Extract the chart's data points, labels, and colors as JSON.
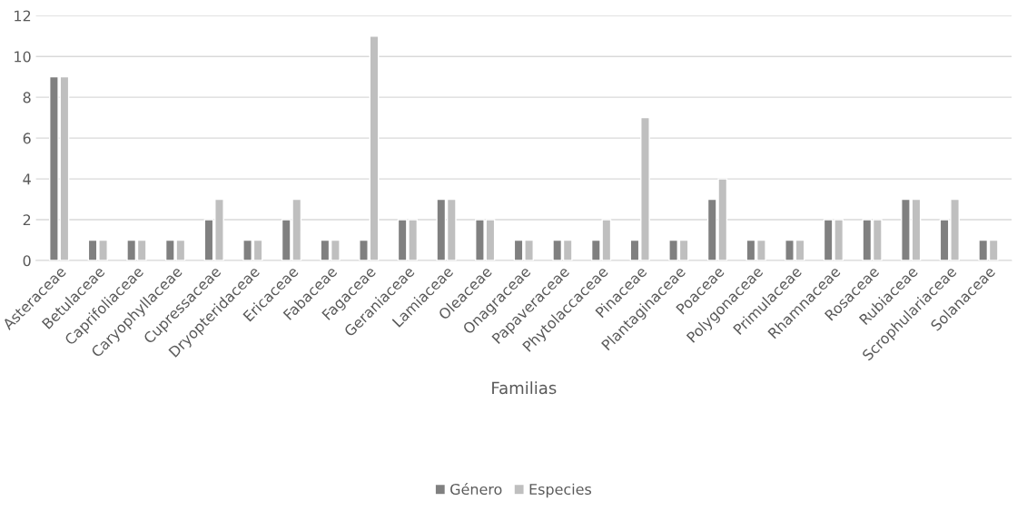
{
  "chart_data": {
    "type": "bar",
    "xlabel": "Familias",
    "categories": [
      "Asteraceae",
      "Betulaceae",
      "Caprifoliaceae",
      "Caryophyllaceae",
      "Cupressaceae",
      "Dryopteridaceae",
      "Ericaceae",
      "Fabaceae",
      "Fagaceae",
      "Geraniaceae",
      "Lamiaceae",
      "Oleaceae",
      "Onagraceae",
      "Papaveraceae",
      "Phytolaccaceae",
      "Pinaceae",
      "Plantaginaceae",
      "Poaceae",
      "Polygonaceae",
      "Primulaceae",
      "Rhamnaceae",
      "Rosaceae",
      "Rubiaceae",
      "Scrophulariaceae",
      "Solanaceae"
    ],
    "series": [
      {
        "name": "Género",
        "color": "#808080",
        "values": [
          9,
          1,
          1,
          1,
          2,
          1,
          2,
          1,
          1,
          2,
          3,
          2,
          1,
          1,
          1,
          1,
          1,
          3,
          1,
          1,
          2,
          2,
          3,
          2,
          1
        ]
      },
      {
        "name": "Especies",
        "color": "#bfbfbf",
        "values": [
          9,
          1,
          1,
          1,
          3,
          1,
          3,
          1,
          11,
          2,
          3,
          2,
          1,
          1,
          2,
          7,
          1,
          4,
          1,
          1,
          2,
          2,
          3,
          3,
          1
        ]
      }
    ],
    "ylim": [
      0,
      12
    ],
    "yticks": [
      0,
      2,
      4,
      6,
      8,
      10,
      12
    ],
    "grid": "y",
    "legend": "bottom"
  }
}
